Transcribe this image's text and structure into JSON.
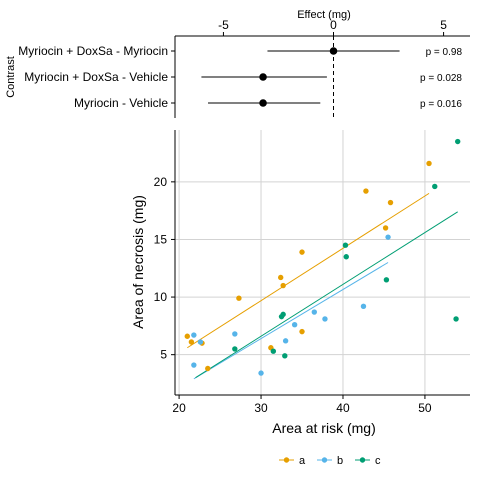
{
  "chart_data": [
    {
      "type": "forest",
      "title": "",
      "xlabel": "Effect (mg)",
      "ylabel": "Contrast",
      "x_axis_position": "top",
      "xlim": [
        -7.2,
        6.2
      ],
      "xticks": [
        -5,
        0,
        5
      ],
      "xtick_labels": [
        "-5",
        "0",
        "5"
      ],
      "reference_line": 0,
      "rows": [
        {
          "label": "Myriocin + DoxSa - Myriocin",
          "estimate": 0.0,
          "lower": -3.0,
          "upper": 3.0,
          "p_label": "p =  0.98"
        },
        {
          "label": "Myriocin + DoxSa - Vehicle",
          "estimate": -3.2,
          "lower": -6.0,
          "upper": -0.3,
          "p_label": "p =  0.028"
        },
        {
          "label": "Myriocin - Vehicle",
          "estimate": -3.2,
          "lower": -5.7,
          "upper": -0.6,
          "p_label": "p =  0.016"
        }
      ],
      "colors": {
        "point": "#000000",
        "reference": "#000000"
      }
    },
    {
      "type": "scatter",
      "title": "",
      "xlabel": "Area at risk (mg)",
      "ylabel": "Area of necrosis (mg)",
      "xlim": [
        19.5,
        55.5
      ],
      "ylim": [
        1.5,
        24.5
      ],
      "xticks": [
        20,
        30,
        40,
        50
      ],
      "xtick_labels": [
        "20",
        "30",
        "40",
        "50"
      ],
      "yticks": [
        5,
        10,
        15,
        20
      ],
      "ytick_labels": [
        "5",
        "10",
        "15",
        "20"
      ],
      "grid": true,
      "legend_position": "bottom",
      "series": [
        {
          "name": "a",
          "color": "#E69F00",
          "points": [
            [
              21.0,
              6.6
            ],
            [
              21.5,
              6.1
            ],
            [
              22.8,
              6.0
            ],
            [
              23.5,
              3.8
            ],
            [
              27.3,
              9.9
            ],
            [
              31.2,
              5.6
            ],
            [
              32.4,
              11.7
            ],
            [
              32.7,
              11.0
            ],
            [
              35.0,
              13.9
            ],
            [
              35.0,
              7.0
            ],
            [
              42.8,
              19.2
            ],
            [
              45.2,
              16.0
            ],
            [
              45.8,
              18.2
            ],
            [
              50.5,
              21.6
            ]
          ],
          "fit": [
            [
              21.0,
              5.6
            ],
            [
              50.5,
              19.0
            ]
          ]
        },
        {
          "name": "b",
          "color": "#56B4E9",
          "points": [
            [
              21.8,
              6.7
            ],
            [
              21.8,
              4.1
            ],
            [
              22.6,
              6.1
            ],
            [
              26.8,
              6.8
            ],
            [
              30.0,
              3.4
            ],
            [
              33.0,
              6.2
            ],
            [
              34.1,
              7.6
            ],
            [
              36.5,
              8.7
            ],
            [
              37.8,
              8.1
            ],
            [
              42.5,
              9.2
            ],
            [
              45.5,
              15.2
            ]
          ],
          "fit": [
            [
              21.8,
              2.9
            ],
            [
              45.5,
              13.0
            ]
          ]
        },
        {
          "name": "c",
          "color": "#009E73",
          "points": [
            [
              26.8,
              5.5
            ],
            [
              31.5,
              5.3
            ],
            [
              32.5,
              8.3
            ],
            [
              32.7,
              8.5
            ],
            [
              32.9,
              4.9
            ],
            [
              40.3,
              14.5
            ],
            [
              40.4,
              13.5
            ],
            [
              45.3,
              11.5
            ],
            [
              51.2,
              19.6
            ],
            [
              53.8,
              8.1
            ],
            [
              54.0,
              23.5
            ]
          ],
          "fit": [
            [
              22.0,
              3.0
            ],
            [
              54.0,
              17.4
            ]
          ]
        }
      ]
    }
  ]
}
